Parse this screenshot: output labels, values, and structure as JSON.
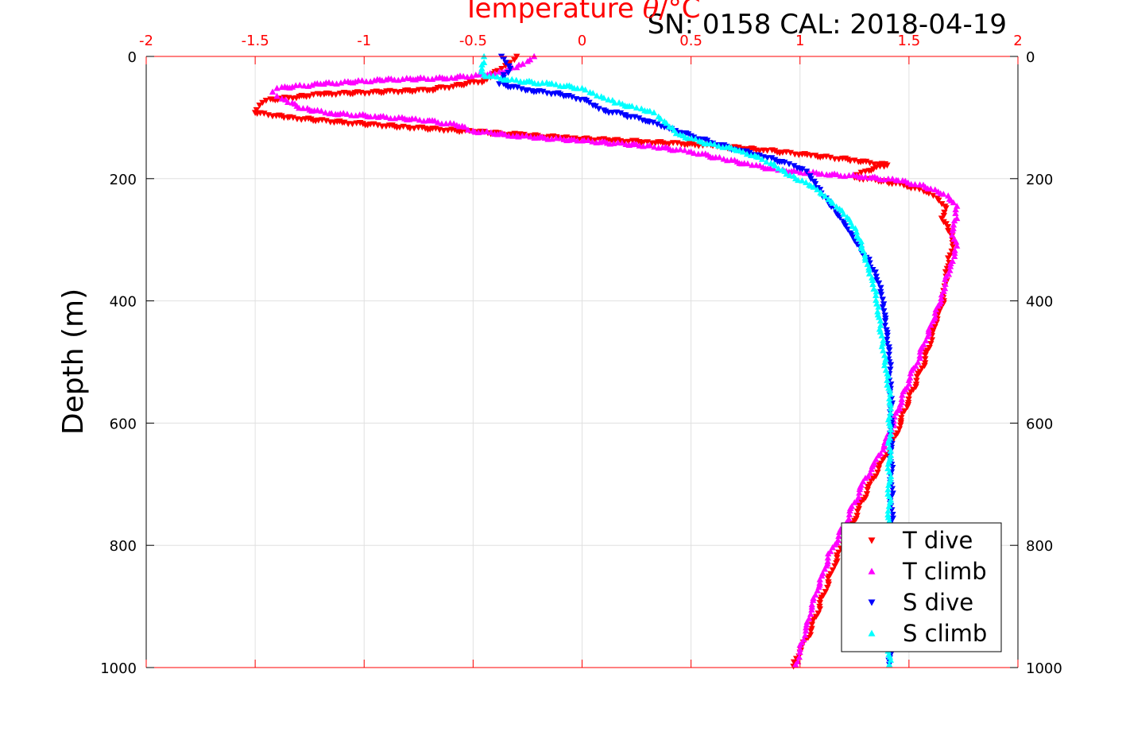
{
  "chart_data": {
    "type": "scatter",
    "title": "SN: 0158  CAL: 2018-04-19",
    "xlabel_prefix": "Temperature ",
    "xlabel_symbol": "θ",
    "xlabel_unit": "/°C",
    "ylabel": "Depth (m)",
    "xlim": [
      -2,
      2
    ],
    "ylim": [
      0,
      1000
    ],
    "y_reversed": true,
    "x_axis_position": "top",
    "right_axis": "depth repeated",
    "grid": true,
    "legend_position": "bottom-right",
    "xticks": [
      "-2",
      "-1.5",
      "-1",
      "-0.5",
      "0",
      "0.5",
      "1",
      "1.5",
      "2"
    ],
    "yticks": [
      "0",
      "200",
      "400",
      "600",
      "800",
      "1000"
    ],
    "colors": {
      "x_axis": "#ff0000",
      "text": "#000000",
      "grid": "#e0e0e0"
    },
    "series": [
      {
        "name": "T dive",
        "marker": "triangle-down",
        "color": "#ff0000",
        "points": [
          [
            -0.3,
            0
          ],
          [
            -0.33,
            10
          ],
          [
            -0.4,
            25
          ],
          [
            -0.45,
            40
          ],
          [
            -0.7,
            55
          ],
          [
            -1.2,
            62
          ],
          [
            -1.45,
            72
          ],
          [
            -1.48,
            80
          ],
          [
            -1.5,
            92
          ],
          [
            -1.35,
            100
          ],
          [
            -1.1,
            108
          ],
          [
            -0.8,
            116
          ],
          [
            -0.5,
            123
          ],
          [
            -0.3,
            128
          ],
          [
            -0.05,
            134
          ],
          [
            0.3,
            140
          ],
          [
            0.6,
            146
          ],
          [
            0.85,
            154
          ],
          [
            1.05,
            162
          ],
          [
            1.25,
            170
          ],
          [
            1.4,
            178
          ],
          [
            1.3,
            188
          ],
          [
            1.25,
            198
          ],
          [
            1.4,
            205
          ],
          [
            1.5,
            213
          ],
          [
            1.58,
            222
          ],
          [
            1.63,
            232
          ],
          [
            1.67,
            248
          ],
          [
            1.65,
            265
          ],
          [
            1.68,
            285
          ],
          [
            1.7,
            305
          ],
          [
            1.68,
            330
          ],
          [
            1.67,
            360
          ],
          [
            1.66,
            400
          ],
          [
            1.63,
            430
          ],
          [
            1.6,
            470
          ],
          [
            1.56,
            510
          ],
          [
            1.52,
            545
          ],
          [
            1.48,
            580
          ],
          [
            1.44,
            620
          ],
          [
            1.38,
            660
          ],
          [
            1.32,
            700
          ],
          [
            1.27,
            740
          ],
          [
            1.22,
            780
          ],
          [
            1.17,
            820
          ],
          [
            1.13,
            860
          ],
          [
            1.09,
            900
          ],
          [
            1.05,
            940
          ],
          [
            1.0,
            975
          ],
          [
            0.97,
            998
          ]
        ]
      },
      {
        "name": "T climb",
        "marker": "triangle-up",
        "color": "#ff00ff",
        "points": [
          [
            -0.22,
            0
          ],
          [
            -0.25,
            8
          ],
          [
            -0.3,
            18
          ],
          [
            -0.4,
            28
          ],
          [
            -0.6,
            35
          ],
          [
            -0.9,
            38
          ],
          [
            -1.2,
            45
          ],
          [
            -1.4,
            52
          ],
          [
            -1.42,
            58
          ],
          [
            -1.4,
            65
          ],
          [
            -1.35,
            75
          ],
          [
            -1.28,
            85
          ],
          [
            -1.15,
            93
          ],
          [
            -0.95,
            98
          ],
          [
            -0.7,
            105
          ],
          [
            -0.55,
            114
          ],
          [
            -0.5,
            122
          ],
          [
            -0.3,
            130
          ],
          [
            0.0,
            138
          ],
          [
            0.3,
            146
          ],
          [
            0.5,
            156
          ],
          [
            0.65,
            168
          ],
          [
            0.78,
            178
          ],
          [
            0.9,
            186
          ],
          [
            1.1,
            192
          ],
          [
            1.3,
            197
          ],
          [
            1.45,
            203
          ],
          [
            1.55,
            210
          ],
          [
            1.62,
            218
          ],
          [
            1.68,
            228
          ],
          [
            1.72,
            245
          ],
          [
            1.72,
            265
          ],
          [
            1.7,
            285
          ],
          [
            1.72,
            310
          ],
          [
            1.7,
            335
          ],
          [
            1.67,
            360
          ],
          [
            1.65,
            390
          ],
          [
            1.62,
            420
          ],
          [
            1.59,
            450
          ],
          [
            1.55,
            490
          ],
          [
            1.5,
            530
          ],
          [
            1.46,
            570
          ],
          [
            1.42,
            610
          ],
          [
            1.37,
            650
          ],
          [
            1.3,
            690
          ],
          [
            1.25,
            730
          ],
          [
            1.2,
            770
          ],
          [
            1.14,
            810
          ],
          [
            1.1,
            850
          ],
          [
            1.06,
            890
          ],
          [
            1.03,
            930
          ],
          [
            1.0,
            970
          ],
          [
            0.98,
            995
          ]
        ]
      },
      {
        "name": "S dive",
        "marker": "triangle-down",
        "color": "#0000ff",
        "points": [
          [
            -0.37,
            0
          ],
          [
            -0.35,
            10
          ],
          [
            -0.33,
            20
          ],
          [
            -0.36,
            30
          ],
          [
            -0.38,
            45
          ],
          [
            -0.25,
            55
          ],
          [
            -0.1,
            62
          ],
          [
            0.02,
            72
          ],
          [
            0.05,
            80
          ],
          [
            0.1,
            88
          ],
          [
            0.2,
            96
          ],
          [
            0.3,
            106
          ],
          [
            0.4,
            118
          ],
          [
            0.5,
            130
          ],
          [
            0.6,
            142
          ],
          [
            0.72,
            154
          ],
          [
            0.85,
            166
          ],
          [
            0.95,
            176
          ],
          [
            1.03,
            188
          ],
          [
            1.05,
            200
          ],
          [
            1.08,
            215
          ],
          [
            1.12,
            232
          ],
          [
            1.16,
            250
          ],
          [
            1.2,
            270
          ],
          [
            1.24,
            292
          ],
          [
            1.28,
            315
          ],
          [
            1.32,
            338
          ],
          [
            1.35,
            360
          ],
          [
            1.37,
            385
          ],
          [
            1.38,
            410
          ],
          [
            1.39,
            440
          ],
          [
            1.4,
            470
          ],
          [
            1.41,
            500
          ],
          [
            1.41,
            530
          ],
          [
            1.42,
            560
          ],
          [
            1.42,
            600
          ],
          [
            1.42,
            640
          ],
          [
            1.42,
            680
          ],
          [
            1.42,
            720
          ],
          [
            1.42,
            760
          ],
          [
            1.42,
            800
          ],
          [
            1.42,
            840
          ],
          [
            1.42,
            880
          ],
          [
            1.42,
            920
          ],
          [
            1.41,
            960
          ],
          [
            1.41,
            995
          ]
        ]
      },
      {
        "name": "S climb",
        "marker": "triangle-up",
        "color": "#00ffff",
        "points": [
          [
            -0.45,
            0
          ],
          [
            -0.45,
            10
          ],
          [
            -0.46,
            20
          ],
          [
            -0.45,
            30
          ],
          [
            -0.35,
            38
          ],
          [
            -0.15,
            45
          ],
          [
            0.0,
            52
          ],
          [
            0.05,
            60
          ],
          [
            0.1,
            68
          ],
          [
            0.15,
            76
          ],
          [
            0.25,
            84
          ],
          [
            0.33,
            92
          ],
          [
            0.36,
            102
          ],
          [
            0.4,
            115
          ],
          [
            0.45,
            128
          ],
          [
            0.55,
            140
          ],
          [
            0.7,
            152
          ],
          [
            0.8,
            164
          ],
          [
            0.88,
            176
          ],
          [
            0.93,
            188
          ],
          [
            0.98,
            200
          ],
          [
            1.05,
            212
          ],
          [
            1.1,
            225
          ],
          [
            1.15,
            240
          ],
          [
            1.2,
            258
          ],
          [
            1.24,
            278
          ],
          [
            1.27,
            298
          ],
          [
            1.29,
            318
          ],
          [
            1.31,
            340
          ],
          [
            1.33,
            362
          ],
          [
            1.35,
            385
          ],
          [
            1.36,
            410
          ],
          [
            1.37,
            440
          ],
          [
            1.38,
            470
          ],
          [
            1.39,
            500
          ],
          [
            1.4,
            530
          ],
          [
            1.41,
            560
          ],
          [
            1.41,
            600
          ],
          [
            1.41,
            640
          ],
          [
            1.41,
            680
          ],
          [
            1.41,
            720
          ],
          [
            1.41,
            760
          ],
          [
            1.41,
            800
          ],
          [
            1.41,
            840
          ],
          [
            1.41,
            880
          ],
          [
            1.41,
            920
          ],
          [
            1.41,
            960
          ],
          [
            1.41,
            995
          ]
        ]
      }
    ]
  }
}
